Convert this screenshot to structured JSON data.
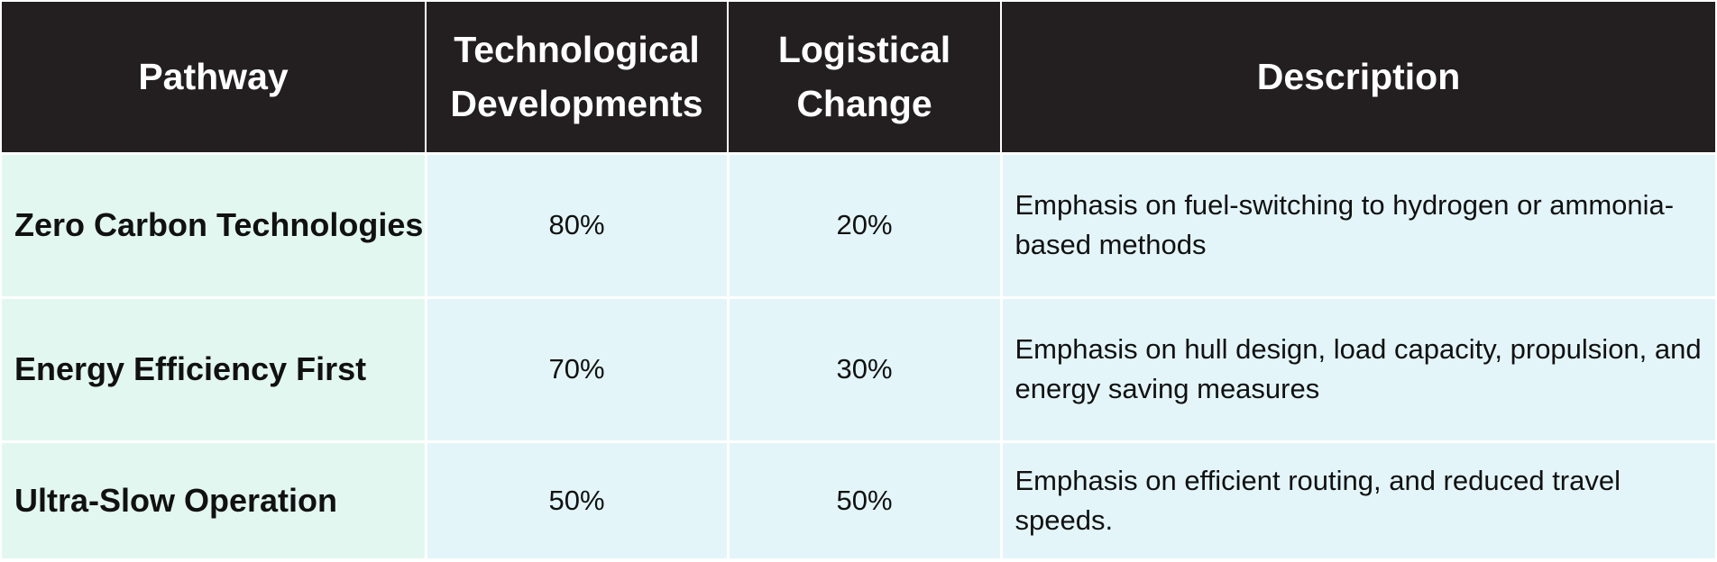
{
  "table": {
    "headers": {
      "pathway": "Pathway",
      "tech": "Technological Developments",
      "logistic": "Logistical Change",
      "description": "Description"
    },
    "rows": [
      {
        "pathway": "Zero Carbon Technologies",
        "tech": "80%",
        "logistic": "20%",
        "description": "Emphasis on fuel-switching to hydrogen or ammonia-based methods"
      },
      {
        "pathway": "Energy Efficiency First",
        "tech": "70%",
        "logistic": "30%",
        "description": "Emphasis on hull design, load capacity, propulsion, and energy saving measures"
      },
      {
        "pathway": "Ultra-Slow Operation",
        "tech": "50%",
        "logistic": "50%",
        "description": "Emphasis on efficient routing, and reduced travel speeds."
      }
    ]
  },
  "colors": {
    "header_bg": "#231f20",
    "pathway_bg": "#e3f7f1",
    "cell_bg": "#e3f5f9"
  }
}
